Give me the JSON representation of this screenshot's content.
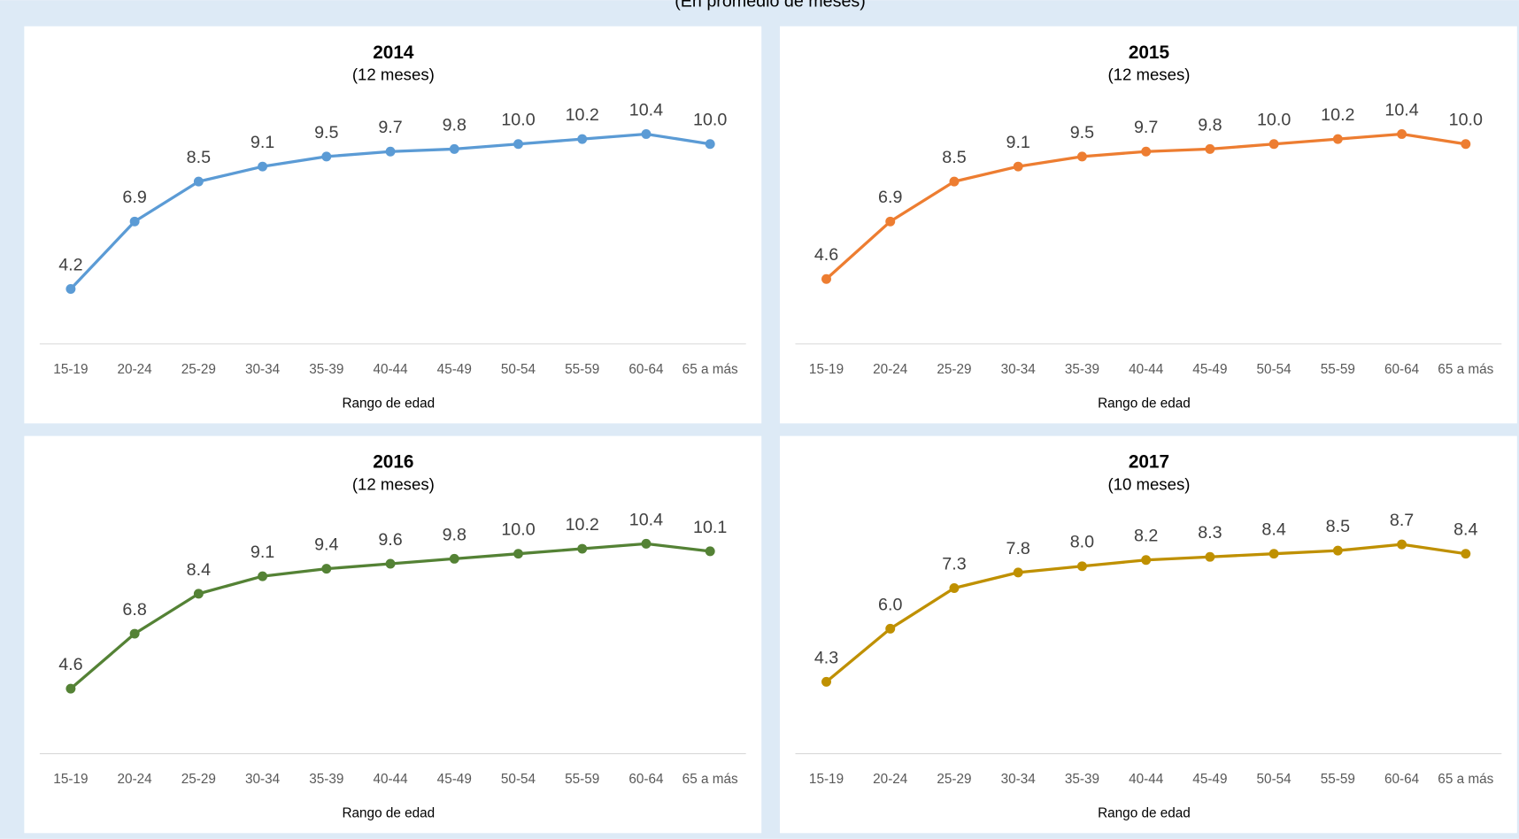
{
  "header": "(En promedio de meses)",
  "chart_data": [
    {
      "type": "line",
      "title": "2014",
      "subtitle": "(12 meses)",
      "x_label": "Rango de edad",
      "categories": [
        "15-19",
        "20-24",
        "25-29",
        "30-34",
        "35-39",
        "40-44",
        "45-49",
        "50-54",
        "55-59",
        "60-64",
        "65 a más"
      ],
      "values": [
        4.2,
        6.9,
        8.5,
        9.1,
        9.5,
        9.7,
        9.8,
        10.0,
        10.2,
        10.4,
        10.0
      ],
      "value_labels": [
        "4.2",
        "6.9",
        "8.5",
        "9.1",
        "9.5",
        "9.7",
        "9.8",
        "10.0",
        "10.2",
        "10.4",
        "10.0"
      ],
      "color": "#5b9bd5",
      "ylim": [
        2,
        12
      ]
    },
    {
      "type": "line",
      "title": "2015",
      "subtitle": "(12 meses)",
      "x_label": "Rango de edad",
      "categories": [
        "15-19",
        "20-24",
        "25-29",
        "30-34",
        "35-39",
        "40-44",
        "45-49",
        "50-54",
        "55-59",
        "60-64",
        "65 a más"
      ],
      "values": [
        4.6,
        6.9,
        8.5,
        9.1,
        9.5,
        9.7,
        9.8,
        10.0,
        10.2,
        10.4,
        10.0
      ],
      "value_labels": [
        "4.6",
        "6.9",
        "8.5",
        "9.1",
        "9.5",
        "9.7",
        "9.8",
        "10.0",
        "10.2",
        "10.4",
        "10.0"
      ],
      "color": "#ed7d31",
      "ylim": [
        2,
        12
      ]
    },
    {
      "type": "line",
      "title": "2016",
      "subtitle": "(12 meses)",
      "x_label": "Rango de edad",
      "categories": [
        "15-19",
        "20-24",
        "25-29",
        "30-34",
        "35-39",
        "40-44",
        "45-49",
        "50-54",
        "55-59",
        "60-64",
        "65 a más"
      ],
      "values": [
        4.6,
        6.8,
        8.4,
        9.1,
        9.4,
        9.6,
        9.8,
        10.0,
        10.2,
        10.4,
        10.1
      ],
      "value_labels": [
        "4.6",
        "6.8",
        "8.4",
        "9.1",
        "9.4",
        "9.6",
        "9.8",
        "10.0",
        "10.2",
        "10.4",
        "10.1"
      ],
      "color": "#548235",
      "ylim": [
        2,
        12
      ]
    },
    {
      "type": "line",
      "title": "2017",
      "subtitle": "(10 meses)",
      "x_label": "Rango de edad",
      "categories": [
        "15-19",
        "20-24",
        "25-29",
        "30-34",
        "35-39",
        "40-44",
        "45-49",
        "50-54",
        "55-59",
        "60-64",
        "65 a más"
      ],
      "values": [
        4.3,
        6.0,
        7.3,
        7.8,
        8.0,
        8.2,
        8.3,
        8.4,
        8.5,
        8.7,
        8.4
      ],
      "value_labels": [
        "4.3",
        "6.0",
        "7.3",
        "7.8",
        "8.0",
        "8.2",
        "8.3",
        "8.4",
        "8.5",
        "8.7",
        "8.4"
      ],
      "color": "#bf9000",
      "ylim": [
        2,
        10
      ]
    }
  ]
}
